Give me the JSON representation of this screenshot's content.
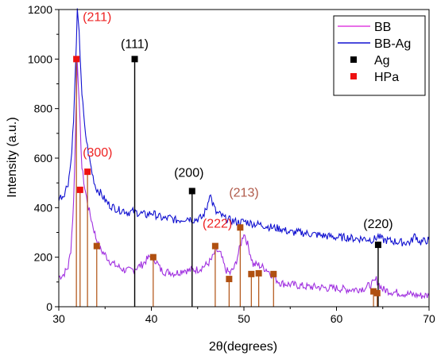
{
  "chart_data": {
    "type": "line",
    "title": "",
    "xlabel": "2θ(degrees)",
    "ylabel": "Intensity (a.u.)",
    "xlim": [
      30,
      70
    ],
    "ylim": [
      0,
      1200
    ],
    "x_ticks": [
      30,
      40,
      50,
      60,
      70
    ],
    "y_ticks": [
      0,
      200,
      400,
      600,
      800,
      1000,
      1200
    ],
    "grid": false,
    "legend_position": "top-right",
    "legend": [
      {
        "label": "BB",
        "kind": "line",
        "color": "#e040e0"
      },
      {
        "label": "BB-Ag",
        "kind": "line",
        "color": "#1010d0"
      },
      {
        "label": "Ag",
        "kind": "marker",
        "color": "#000000"
      },
      {
        "label": "HPa",
        "kind": "marker",
        "color": "#ee1111"
      }
    ],
    "series": [
      {
        "name": "BB",
        "color": "#a030e0",
        "x": [
          30,
          30.5,
          31,
          31.3,
          31.6,
          31.8,
          32,
          32.2,
          32.5,
          32.8,
          33.2,
          33.6,
          34,
          34.5,
          35,
          35.5,
          36,
          36.5,
          37,
          37.5,
          38,
          38.5,
          39,
          39.5,
          40,
          40.5,
          41,
          41.5,
          42,
          42.5,
          43,
          43.5,
          44,
          44.5,
          45,
          45.5,
          46,
          46.5,
          47,
          47.5,
          48,
          48.5,
          49,
          49.5,
          50,
          50.5,
          51,
          51.5,
          52,
          52.5,
          53,
          53.5,
          54,
          55,
          56,
          57,
          58,
          59,
          60,
          61,
          62,
          63,
          64,
          64.3,
          64.6,
          65,
          65.5,
          66,
          67,
          68,
          69,
          70
        ],
        "y": [
          120,
          130,
          160,
          230,
          420,
          700,
          1000,
          820,
          560,
          480,
          400,
          340,
          280,
          230,
          210,
          185,
          170,
          160,
          150,
          145,
          150,
          160,
          170,
          190,
          205,
          185,
          150,
          140,
          140,
          135,
          140,
          150,
          145,
          150,
          150,
          160,
          170,
          190,
          230,
          210,
          150,
          135,
          160,
          230,
          300,
          240,
          170,
          170,
          160,
          150,
          130,
          110,
          95,
          90,
          85,
          80,
          80,
          75,
          75,
          70,
          70,
          75,
          95,
          110,
          90,
          70,
          65,
          60,
          55,
          50,
          45,
          45
        ]
      },
      {
        "name": "BB-Ag",
        "color": "#1010d0",
        "x": [
          30,
          30.5,
          31,
          31.3,
          31.6,
          31.8,
          32,
          32.2,
          32.5,
          32.8,
          33.2,
          33.6,
          34,
          34.5,
          35,
          35.5,
          36,
          36.5,
          37,
          37.5,
          38,
          38.5,
          39,
          39.5,
          40,
          40.5,
          41,
          41.5,
          42,
          42.5,
          43,
          43.5,
          44,
          44.5,
          45,
          45.5,
          46,
          46.3,
          46.6,
          47,
          47.5,
          48,
          48.5,
          49,
          49.5,
          50,
          50.5,
          51,
          52,
          53,
          54,
          55,
          56,
          57,
          58,
          59,
          60,
          61,
          62,
          63,
          64,
          64.5,
          65,
          66,
          67,
          68,
          68.5,
          69,
          70
        ],
        "y": [
          440,
          450,
          500,
          580,
          750,
          960,
          1190,
          1100,
          860,
          720,
          620,
          540,
          480,
          460,
          430,
          410,
          400,
          390,
          390,
          380,
          385,
          380,
          375,
          370,
          380,
          370,
          360,
          355,
          360,
          350,
          350,
          355,
          360,
          350,
          355,
          360,
          400,
          460,
          420,
          380,
          370,
          355,
          350,
          345,
          340,
          345,
          340,
          335,
          330,
          320,
          315,
          300,
          300,
          295,
          290,
          285,
          280,
          280,
          275,
          275,
          270,
          285,
          270,
          265,
          260,
          260,
          290,
          260,
          270
        ]
      }
    ],
    "markers": {
      "Ag": {
        "color": "#000000",
        "label_color": "#000000",
        "points": [
          {
            "x": 38.2,
            "y": 1000,
            "label": "(111)"
          },
          {
            "x": 44.4,
            "y": 467,
            "label": "(200)"
          },
          {
            "x": 64.5,
            "y": 250,
            "label": "(220)"
          }
        ]
      },
      "HPa": {
        "color": "#ee1111",
        "drop_color": "#b05010",
        "label_color": "#ee2222",
        "points": [
          {
            "x": 31.9,
            "y": 1000,
            "label": "(211)"
          },
          {
            "x": 32.3,
            "y": 472
          },
          {
            "x": 33.1,
            "y": 545,
            "label": "(300)"
          },
          {
            "x": 34.1,
            "y": 245
          },
          {
            "x": 40.2,
            "y": 200
          },
          {
            "x": 46.9,
            "y": 245,
            "label": "(222)"
          },
          {
            "x": 48.4,
            "y": 112
          },
          {
            "x": 49.6,
            "y": 320,
            "label": "(213)"
          },
          {
            "x": 50.8,
            "y": 132
          },
          {
            "x": 51.6,
            "y": 135
          },
          {
            "x": 53.2,
            "y": 132
          },
          {
            "x": 64.0,
            "y": 62
          },
          {
            "x": 64.4,
            "y": 55
          }
        ]
      }
    }
  }
}
